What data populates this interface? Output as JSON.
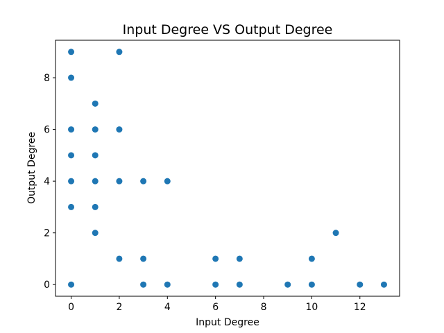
{
  "chart_data": {
    "type": "scatter",
    "title": "Input Degree VS Output Degree",
    "xlabel": "Input Degree",
    "ylabel": "Output Degree",
    "xlim": [
      -0.65,
      13.65
    ],
    "ylim": [
      -0.45,
      9.45
    ],
    "xticks": [
      0,
      2,
      4,
      6,
      8,
      10,
      12
    ],
    "yticks": [
      0,
      2,
      4,
      6,
      8
    ],
    "grid": false,
    "marker_color": "#1f77b4",
    "points": [
      {
        "x": 0,
        "y": 9
      },
      {
        "x": 0,
        "y": 8
      },
      {
        "x": 0,
        "y": 6
      },
      {
        "x": 0,
        "y": 5
      },
      {
        "x": 0,
        "y": 4
      },
      {
        "x": 0,
        "y": 3
      },
      {
        "x": 0,
        "y": 0
      },
      {
        "x": 1,
        "y": 7
      },
      {
        "x": 1,
        "y": 6
      },
      {
        "x": 1,
        "y": 5
      },
      {
        "x": 1,
        "y": 4
      },
      {
        "x": 1,
        "y": 3
      },
      {
        "x": 1,
        "y": 2
      },
      {
        "x": 2,
        "y": 9
      },
      {
        "x": 2,
        "y": 6
      },
      {
        "x": 2,
        "y": 4
      },
      {
        "x": 2,
        "y": 1
      },
      {
        "x": 3,
        "y": 4
      },
      {
        "x": 3,
        "y": 1
      },
      {
        "x": 3,
        "y": 0
      },
      {
        "x": 4,
        "y": 4
      },
      {
        "x": 4,
        "y": 0
      },
      {
        "x": 6,
        "y": 1
      },
      {
        "x": 6,
        "y": 0
      },
      {
        "x": 7,
        "y": 1
      },
      {
        "x": 7,
        "y": 0
      },
      {
        "x": 9,
        "y": 0
      },
      {
        "x": 10,
        "y": 1
      },
      {
        "x": 10,
        "y": 0
      },
      {
        "x": 11,
        "y": 2
      },
      {
        "x": 12,
        "y": 0
      },
      {
        "x": 13,
        "y": 0
      }
    ]
  }
}
